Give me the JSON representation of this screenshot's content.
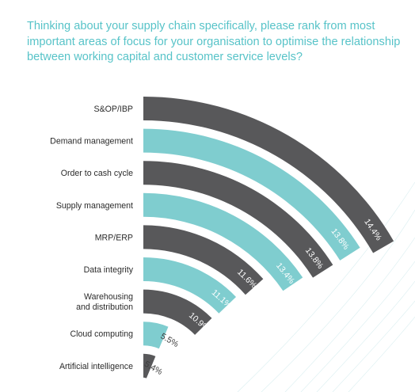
{
  "question": "Thinking about your supply chain specifically, please rank from most important areas of focus for your organisation to optimise the relationship between working capital and customer service levels?",
  "colors": {
    "dark": "#58585a",
    "teal": "#7fcdcf",
    "question": "#57c3c8",
    "value_on_dark": "#ffffff",
    "value_on_light": "#3c3c3c"
  },
  "chart_data": {
    "type": "bar",
    "layout": "radial-fan",
    "categories": [
      "S&OP/IBP",
      "Demand management",
      "Order to cash cycle",
      "Supply management",
      "MRP/ERP",
      "Data integrity",
      "Warehousing\nand distribution",
      "Cloud computing",
      "Artificial intelligence"
    ],
    "series": [
      {
        "values": [
          14.4,
          13.8,
          13.8,
          13.4,
          11.6,
          11.1,
          10.9,
          5.5,
          5.4
        ]
      }
    ],
    "value_labels": [
      "14.4%",
      "13.8%",
      "13.8%",
      "13.4%",
      "11.6%",
      "11.1%",
      "10.9%",
      "5.5%",
      "5.4%"
    ],
    "bar_colors": [
      "dark",
      "teal",
      "dark",
      "teal",
      "dark",
      "teal",
      "dark",
      "teal",
      "dark"
    ]
  }
}
